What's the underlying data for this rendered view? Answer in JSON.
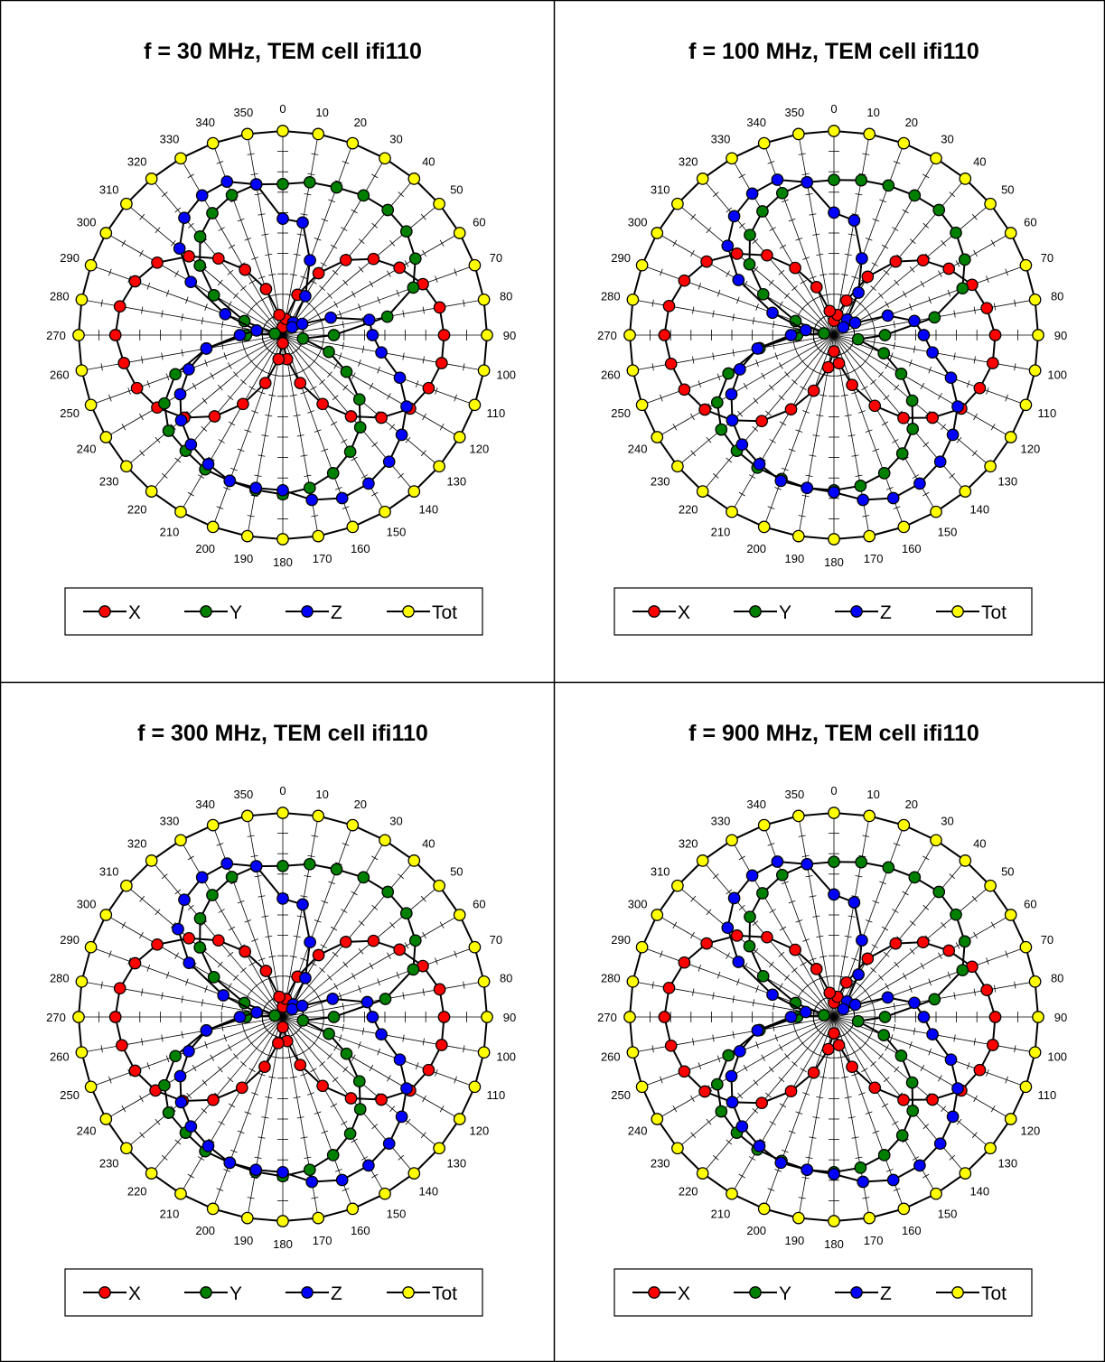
{
  "chart_data": [
    {
      "type": "polar",
      "title": "f = 30 MHz, TEM cell ifi110",
      "theta_labels": [
        "0",
        "10",
        "20",
        "30",
        "40",
        "50",
        "60",
        "70",
        "80",
        "90",
        "100",
        "110",
        "120",
        "130",
        "140",
        "150",
        "160",
        "170",
        "180",
        "190",
        "200",
        "210",
        "220",
        "230",
        "240",
        "250",
        "260",
        "270",
        "280",
        "290",
        "300",
        "310",
        "320",
        "330",
        "340",
        "350"
      ],
      "r_range": [
        0,
        1
      ],
      "grid": true,
      "legend_position": "bottom",
      "series": [
        {
          "name": "X",
          "color": "#ff0000",
          "values": [
            0.04,
            0.08,
            0.21,
            0.35,
            0.48,
            0.58,
            0.66,
            0.73,
            0.78,
            0.79,
            0.79,
            0.76,
            0.72,
            0.63,
            0.52,
            0.39,
            0.25,
            0.12,
            0.04,
            0.12,
            0.25,
            0.39,
            0.52,
            0.63,
            0.71,
            0.76,
            0.79,
            0.82,
            0.81,
            0.77,
            0.71,
            0.6,
            0.49,
            0.37,
            0.24,
            0.1
          ]
        },
        {
          "name": "Y",
          "color": "#008000",
          "values": [
            0.74,
            0.76,
            0.77,
            0.79,
            0.8,
            0.79,
            0.75,
            0.68,
            0.52,
            0.25,
            0.1,
            0.24,
            0.36,
            0.49,
            0.59,
            0.66,
            0.72,
            0.76,
            0.78,
            0.77,
            0.76,
            0.76,
            0.74,
            0.73,
            0.67,
            0.56,
            0.38,
            0.18,
            0.04,
            0.2,
            0.39,
            0.53,
            0.63,
            0.69,
            0.73,
            0.75
          ]
        },
        {
          "name": "Z",
          "color": "#0000ff",
          "values": [
            0.57,
            0.56,
            0.39,
            0.22,
            0.08,
            0.06,
            0.11,
            0.25,
            0.43,
            0.44,
            0.49,
            0.61,
            0.7,
            0.76,
            0.81,
            0.84,
            0.85,
            0.82,
            0.76,
            0.76,
            0.76,
            0.73,
            0.7,
            0.65,
            0.58,
            0.49,
            0.38,
            0.21,
            0.13,
            0.3,
            0.52,
            0.66,
            0.75,
            0.79,
            0.8,
            0.75
          ]
        },
        {
          "name": "Tot",
          "color": "#ffff00",
          "values": [
            1,
            1,
            1,
            1,
            1,
            1,
            1,
            1,
            1,
            1,
            1,
            1,
            1,
            1,
            1,
            1,
            1,
            1,
            1,
            1,
            1,
            1,
            1,
            1,
            1,
            1,
            1,
            1,
            1,
            1,
            1,
            1,
            1,
            1,
            1,
            1
          ]
        }
      ]
    },
    {
      "type": "polar",
      "title": "f = 100 MHz, TEM cell ifi110",
      "theta_labels": [
        "0",
        "10",
        "20",
        "30",
        "40",
        "50",
        "60",
        "70",
        "80",
        "90",
        "100",
        "110",
        "120",
        "130",
        "140",
        "150",
        "160",
        "170",
        "180",
        "190",
        "200",
        "210",
        "220",
        "230",
        "240",
        "250",
        "260",
        "270",
        "280",
        "290",
        "300",
        "310",
        "320",
        "330",
        "340",
        "350"
      ],
      "r_range": [
        0,
        1
      ],
      "grid": true,
      "legend_position": "bottom",
      "series": [
        {
          "name": "X",
          "color": "#ff0000",
          "values": [
            0.07,
            0.1,
            0.18,
            0.33,
            0.47,
            0.57,
            0.65,
            0.72,
            0.76,
            0.79,
            0.79,
            0.76,
            0.72,
            0.63,
            0.53,
            0.4,
            0.26,
            0.14,
            0.08,
            0.16,
            0.29,
            0.42,
            0.55,
            0.65,
            0.73,
            0.78,
            0.81,
            0.83,
            0.82,
            0.78,
            0.72,
            0.62,
            0.51,
            0.38,
            0.25,
            0.12
          ]
        },
        {
          "name": "Y",
          "color": "#008000",
          "values": [
            0.76,
            0.77,
            0.78,
            0.79,
            0.8,
            0.78,
            0.74,
            0.67,
            0.5,
            0.25,
            0.12,
            0.26,
            0.38,
            0.5,
            0.6,
            0.67,
            0.72,
            0.75,
            0.76,
            0.76,
            0.75,
            0.75,
            0.74,
            0.72,
            0.66,
            0.55,
            0.37,
            0.18,
            0.05,
            0.2,
            0.4,
            0.54,
            0.64,
            0.7,
            0.74,
            0.76
          ]
        },
        {
          "name": "Z",
          "color": "#0000ff",
          "values": [
            0.6,
            0.57,
            0.4,
            0.24,
            0.1,
            0.06,
            0.12,
            0.28,
            0.4,
            0.44,
            0.49,
            0.61,
            0.7,
            0.76,
            0.81,
            0.84,
            0.85,
            0.82,
            0.77,
            0.76,
            0.76,
            0.73,
            0.7,
            0.65,
            0.58,
            0.49,
            0.38,
            0.21,
            0.14,
            0.32,
            0.54,
            0.68,
            0.76,
            0.8,
            0.81,
            0.76
          ]
        },
        {
          "name": "Tot",
          "color": "#ffff00",
          "values": [
            1,
            1,
            1,
            1,
            1,
            1,
            1,
            1,
            1,
            1,
            1,
            1,
            1,
            1,
            1,
            1,
            1,
            1,
            1,
            1,
            1,
            1,
            1,
            1,
            1,
            1,
            1,
            1,
            1,
            1,
            1,
            1,
            1,
            1,
            1,
            1
          ]
        }
      ]
    },
    {
      "type": "polar",
      "title": "f = 300 MHz, TEM cell ifi110",
      "theta_labels": [
        "0",
        "10",
        "20",
        "30",
        "40",
        "50",
        "60",
        "70",
        "80",
        "90",
        "100",
        "110",
        "120",
        "130",
        "140",
        "150",
        "160",
        "170",
        "180",
        "190",
        "200",
        "210",
        "220",
        "230",
        "240",
        "250",
        "260",
        "270",
        "280",
        "290",
        "300",
        "310",
        "320",
        "330",
        "340",
        "350"
      ],
      "r_range": [
        0,
        1
      ],
      "grid": true,
      "legend_position": "bottom",
      "series": [
        {
          "name": "X",
          "color": "#ff0000",
          "values": [
            0.05,
            0.09,
            0.21,
            0.35,
            0.48,
            0.58,
            0.66,
            0.73,
            0.78,
            0.79,
            0.79,
            0.76,
            0.72,
            0.63,
            0.52,
            0.39,
            0.25,
            0.12,
            0.05,
            0.13,
            0.26,
            0.4,
            0.53,
            0.64,
            0.72,
            0.77,
            0.8,
            0.82,
            0.81,
            0.77,
            0.71,
            0.6,
            0.49,
            0.37,
            0.24,
            0.1
          ]
        },
        {
          "name": "Y",
          "color": "#008000",
          "values": [
            0.74,
            0.76,
            0.77,
            0.79,
            0.8,
            0.79,
            0.75,
            0.68,
            0.51,
            0.25,
            0.1,
            0.24,
            0.36,
            0.49,
            0.59,
            0.66,
            0.72,
            0.76,
            0.78,
            0.77,
            0.76,
            0.76,
            0.74,
            0.73,
            0.67,
            0.56,
            0.38,
            0.18,
            0.04,
            0.2,
            0.39,
            0.53,
            0.63,
            0.69,
            0.73,
            0.75
          ]
        },
        {
          "name": "Z",
          "color": "#0000ff",
          "values": [
            0.58,
            0.56,
            0.39,
            0.22,
            0.08,
            0.06,
            0.11,
            0.26,
            0.42,
            0.44,
            0.49,
            0.61,
            0.7,
            0.76,
            0.81,
            0.84,
            0.85,
            0.82,
            0.76,
            0.76,
            0.76,
            0.73,
            0.7,
            0.65,
            0.58,
            0.49,
            0.38,
            0.21,
            0.13,
            0.31,
            0.53,
            0.67,
            0.75,
            0.79,
            0.8,
            0.75
          ]
        },
        {
          "name": "Tot",
          "color": "#ffff00",
          "values": [
            1,
            1,
            1,
            1,
            1,
            1,
            1,
            1,
            1,
            1,
            1,
            1,
            1,
            1,
            1,
            1,
            1,
            1,
            1,
            1,
            1,
            1,
            1,
            1,
            1,
            1,
            1,
            1,
            1,
            1,
            1,
            1,
            1,
            1,
            1,
            1
          ]
        }
      ]
    },
    {
      "type": "polar",
      "title": "f = 900 MHz, TEM cell ifi110",
      "theta_labels": [
        "0",
        "10",
        "20",
        "30",
        "40",
        "50",
        "60",
        "70",
        "80",
        "90",
        "100",
        "110",
        "120",
        "130",
        "140",
        "150",
        "160",
        "170",
        "180",
        "190",
        "200",
        "210",
        "220",
        "230",
        "240",
        "250",
        "260",
        "270",
        "280",
        "290",
        "300",
        "310",
        "320",
        "330",
        "340",
        "350"
      ],
      "r_range": [
        0,
        1
      ],
      "grid": true,
      "legend_position": "bottom",
      "series": [
        {
          "name": "X",
          "color": "#ff0000",
          "values": [
            0.07,
            0.1,
            0.18,
            0.33,
            0.47,
            0.57,
            0.65,
            0.72,
            0.76,
            0.79,
            0.79,
            0.76,
            0.72,
            0.63,
            0.53,
            0.4,
            0.26,
            0.14,
            0.08,
            0.16,
            0.29,
            0.42,
            0.55,
            0.65,
            0.73,
            0.78,
            0.81,
            0.83,
            0.82,
            0.78,
            0.72,
            0.62,
            0.51,
            0.38,
            0.25,
            0.12
          ]
        },
        {
          "name": "Y",
          "color": "#008000",
          "values": [
            0.76,
            0.77,
            0.78,
            0.79,
            0.8,
            0.78,
            0.74,
            0.67,
            0.5,
            0.25,
            0.12,
            0.26,
            0.38,
            0.5,
            0.6,
            0.67,
            0.72,
            0.75,
            0.76,
            0.76,
            0.75,
            0.75,
            0.74,
            0.72,
            0.66,
            0.55,
            0.37,
            0.18,
            0.05,
            0.2,
            0.4,
            0.54,
            0.64,
            0.7,
            0.74,
            0.76
          ]
        },
        {
          "name": "Z",
          "color": "#0000ff",
          "values": [
            0.6,
            0.57,
            0.4,
            0.24,
            0.1,
            0.06,
            0.12,
            0.28,
            0.4,
            0.44,
            0.49,
            0.61,
            0.7,
            0.76,
            0.81,
            0.84,
            0.85,
            0.82,
            0.77,
            0.76,
            0.76,
            0.73,
            0.7,
            0.65,
            0.58,
            0.49,
            0.38,
            0.21,
            0.14,
            0.32,
            0.54,
            0.68,
            0.76,
            0.8,
            0.81,
            0.76
          ]
        },
        {
          "name": "Tot",
          "color": "#ffff00",
          "values": [
            1,
            1,
            1,
            1,
            1,
            1,
            1,
            1,
            1,
            1,
            1,
            1,
            1,
            1,
            1,
            1,
            1,
            1,
            1,
            1,
            1,
            1,
            1,
            1,
            1,
            1,
            1,
            1,
            1,
            1,
            1,
            1,
            1,
            1,
            1,
            1
          ]
        }
      ]
    }
  ]
}
